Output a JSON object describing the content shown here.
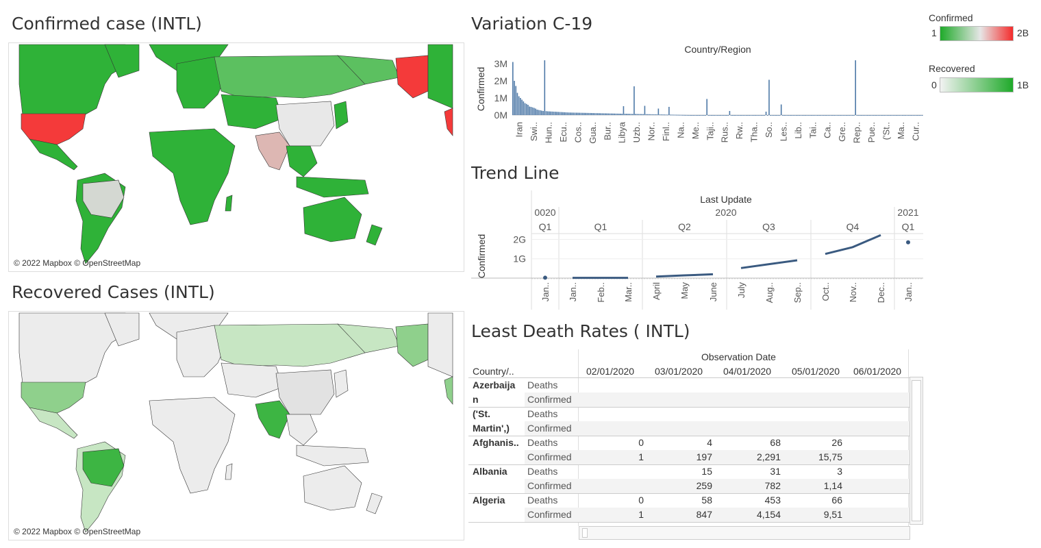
{
  "titles": {
    "confirmed_map": "Confirmed case (INTL)",
    "recovered_map": "Recovered Cases (INTL)",
    "variation": "Variation C-19",
    "trend": "Trend Line",
    "least_death": "Least Death Rates ( INTL)"
  },
  "map_credit": "© 2022 Mapbox © OpenStreetMap",
  "legends": {
    "confirmed": {
      "title": "Confirmed",
      "min": "1",
      "max": "2B",
      "colors": [
        "#1faa2a",
        "#e6e6e6",
        "#f42c2c"
      ]
    },
    "recovered": {
      "title": "Recovered",
      "min": "0",
      "max": "1B",
      "colors": [
        "#f2f2f2",
        "#1faa2a"
      ]
    }
  },
  "colors": {
    "bar": "#4e79a7",
    "trend": "#3a5a80",
    "map_green": "#2fb238",
    "map_light_green": "#5cc060",
    "map_red": "#f43a3a",
    "map_gray": "#e8e8e8",
    "map_pink": "#ddb7b3",
    "rec_light": "#c7e6c3",
    "rec_mid": "#8fd08c",
    "rec_green": "#3db543",
    "rec_gray": "#ececec"
  },
  "chart_data": [
    {
      "type": "bar",
      "title": "Country/Region",
      "ylabel": "Confirmed",
      "yticks": [
        "3M",
        "2M",
        "1M",
        "0M"
      ],
      "ylim": [
        0,
        3200000
      ],
      "tick_labels": [
        "Iran",
        "Swi..",
        "Hun..",
        "Ecu..",
        "Cos..",
        "Gua..",
        "Bur..",
        "Libya",
        "Uzb..",
        "Nor..",
        "Finl..",
        "Na..",
        "Me..",
        "Taji..",
        "Rus..",
        "Rw..",
        "Tha..",
        "So..",
        "Les..",
        "Lib..",
        "Tai..",
        "Ca..",
        "Gre..",
        "Rep..",
        "Pue..",
        "('St..",
        "Ma..",
        "Cur.."
      ],
      "values": [
        3100000,
        2000000,
        1700000,
        1300000,
        1100000,
        1000000,
        900000,
        800000,
        700000,
        650000,
        600000,
        500000,
        480000,
        450000,
        420000,
        380000,
        320000,
        300000,
        280000,
        260000,
        240000,
        3200000,
        230000,
        220000,
        215000,
        210000,
        205000,
        200000,
        195000,
        190000,
        185000,
        180000,
        175000,
        170000,
        165000,
        160000,
        155000,
        150000,
        148000,
        146000,
        144000,
        142000,
        140000,
        138000,
        136000,
        134000,
        132000,
        130000,
        128000,
        126000,
        124000,
        122000,
        120000,
        118000,
        116000,
        114000,
        112000,
        110000,
        108000,
        106000,
        104000,
        102000,
        100000,
        98000,
        96000,
        94000,
        92000,
        90000,
        88000,
        86000,
        84000,
        82000,
        80000,
        520000,
        78000,
        76000,
        74000,
        72000,
        70000,
        68000,
        1680000,
        66000,
        64000,
        62000,
        60000,
        58000,
        56000,
        540000,
        54000,
        52000,
        50000,
        48000,
        46000,
        44000,
        42000,
        40000,
        380000,
        38000,
        36000,
        34000,
        32000,
        30000,
        28000,
        480000,
        26000,
        24000,
        22000,
        20000,
        18000,
        16000,
        14000,
        12000,
        10000,
        8000,
        6000,
        4000,
        3000,
        2000,
        1000,
        1000,
        1000,
        1000,
        1000,
        1000,
        1000,
        1000,
        1000,
        1000,
        940000,
        1000,
        1000,
        1000,
        1000,
        1000,
        1000,
        1000,
        1000,
        1000,
        1000,
        1000,
        1000,
        1000,
        1000,
        240000,
        1000,
        1000,
        1000,
        1000,
        1000,
        1000,
        1000,
        1000,
        1000,
        1000,
        1000,
        1000,
        1000,
        1000,
        1000,
        1000,
        1000,
        1000,
        1000,
        1000,
        1000,
        1000,
        1000,
        200000,
        1000,
        2060000,
        1000,
        1000,
        1000,
        1000,
        1000,
        1000,
        1000,
        620000,
        1000,
        1000,
        1000,
        1000,
        1000,
        1000,
        1000,
        1000,
        1000,
        1000,
        1000,
        1000,
        1000,
        1000,
        1000,
        1000,
        1000,
        1000,
        1000,
        1000,
        1000,
        1000,
        1000,
        1000,
        1000,
        1000,
        1000,
        1000,
        1000,
        1000,
        1000,
        1000,
        1000,
        1000,
        1000,
        1000,
        1000,
        1000,
        1000,
        1000,
        1000,
        1000,
        1000,
        1000,
        1000,
        1000,
        1000,
        1000,
        3200000,
        1000,
        1000,
        1000,
        1000,
        1000,
        1000,
        1000,
        1000,
        1000,
        1000,
        1000,
        1000,
        1000,
        1000,
        1000,
        1000,
        1000,
        1000,
        1000,
        1000,
        1000,
        1000,
        1000,
        1000,
        1000,
        1000,
        1000,
        1000,
        1000,
        1000,
        1000,
        1000,
        1000,
        1000,
        1000,
        1000,
        1000,
        1000,
        1000,
        1000,
        1000,
        1000,
        1000,
        1000
      ]
    },
    {
      "type": "line",
      "title": "Last Update",
      "ylabel": "Confirmed",
      "yticks": [
        "2G",
        "1G"
      ],
      "ylim": [
        0,
        2300000000
      ],
      "year_labels": [
        "0020",
        "2020",
        "2021"
      ],
      "quarter_labels": [
        "Q1",
        "Q1",
        "Q2",
        "Q3",
        "Q4",
        "Q1"
      ],
      "month_labels": [
        "Jan..",
        "Jan..",
        "Feb..",
        "Mar..",
        "April",
        "May",
        "June",
        "July",
        "Aug..",
        "Sep..",
        "Oct..",
        "Nov..",
        "Dec..",
        "Jan.."
      ],
      "segments": [
        {
          "points": [
            [
              0,
              20000000
            ]
          ]
        },
        {
          "points": [
            [
              1,
              15000000
            ],
            [
              2,
              15000000
            ],
            [
              3,
              15000000
            ]
          ]
        },
        {
          "points": [
            [
              4,
              80000000
            ],
            [
              5,
              140000000
            ],
            [
              6,
              200000000
            ]
          ]
        },
        {
          "points": [
            [
              7,
              520000000
            ],
            [
              8,
              720000000
            ],
            [
              9,
              920000000
            ]
          ]
        },
        {
          "points": [
            [
              10,
              1250000000
            ],
            [
              11,
              1600000000
            ],
            [
              12,
              2220000000
            ]
          ]
        },
        {
          "points": [
            [
              13,
              1850000000
            ]
          ]
        }
      ]
    }
  ],
  "table": {
    "header_group": "Observation Date",
    "row_header": "Country/..",
    "dates": [
      "02/01/2020",
      "03/01/2020",
      "04/01/2020",
      "05/01/2020",
      "06/01/2020"
    ],
    "rows": [
      {
        "country": "Azerbaija\nn",
        "deaths": [
          "",
          "",
          "",
          "",
          ""
        ],
        "confirmed": [
          "",
          "",
          "",
          "",
          ""
        ]
      },
      {
        "country": "('St.\nMartin',)",
        "deaths": [
          "",
          "",
          "",
          "",
          ""
        ],
        "confirmed": [
          "",
          "",
          "",
          "",
          ""
        ]
      },
      {
        "country": "Afghanis..",
        "deaths": [
          "",
          "0",
          "4",
          "68",
          "26"
        ],
        "confirmed": [
          "",
          "1",
          "197",
          "2,291",
          "15,75"
        ]
      },
      {
        "country": "Albania",
        "deaths": [
          "",
          "",
          "15",
          "31",
          "3"
        ],
        "confirmed": [
          "",
          "",
          "259",
          "782",
          "1,14"
        ]
      },
      {
        "country": "Algeria",
        "deaths": [
          "",
          "0",
          "58",
          "453",
          "66"
        ],
        "confirmed": [
          "",
          "1",
          "847",
          "4,154",
          "9,51"
        ]
      }
    ],
    "measure_labels": {
      "deaths": "Deaths",
      "confirmed": "Confirmed"
    }
  }
}
